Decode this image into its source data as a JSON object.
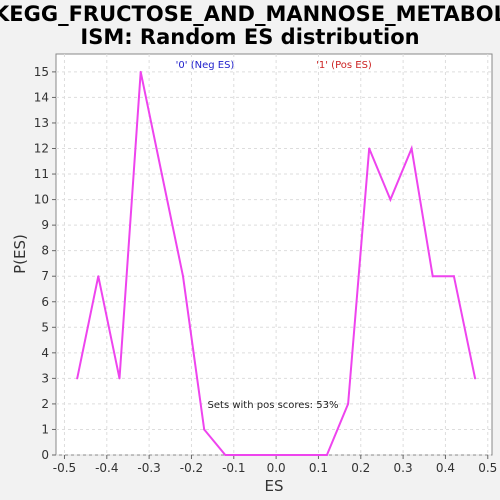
{
  "chart_data": {
    "type": "line",
    "title_lines": [
      "KEGG_FRUCTOSE_AND_MANNOSE_METABOL",
      "ISM: Random ES distribution"
    ],
    "xlabel": "ES",
    "ylabel": "P(ES)",
    "xlim": [
      -0.52,
      0.51
    ],
    "ylim": [
      0,
      15.7
    ],
    "x_ticks": [
      -0.5,
      -0.4,
      -0.3,
      -0.2,
      -0.1,
      0.0,
      0.1,
      0.2,
      0.3,
      0.4,
      0.5
    ],
    "x_tick_labels": [
      "-0.5",
      "-0.4",
      "-0.3",
      "-0.2",
      "-0.1",
      "0.0",
      "0.1",
      "0.2",
      "0.3",
      "0.4",
      "0.5"
    ],
    "y_ticks": [
      0,
      1,
      2,
      3,
      4,
      5,
      6,
      7,
      8,
      9,
      10,
      11,
      12,
      13,
      14,
      15
    ],
    "y_tick_labels": [
      "0",
      "1",
      "2",
      "3",
      "4",
      "5",
      "6",
      "7",
      "8",
      "9",
      "10",
      "11",
      "12",
      "13",
      "14",
      "15"
    ],
    "grid": true,
    "series": [
      {
        "color": "#ee44ee",
        "points": [
          [
            -0.47,
            3
          ],
          [
            -0.42,
            7
          ],
          [
            -0.37,
            3
          ],
          [
            -0.32,
            15
          ],
          [
            -0.27,
            11
          ],
          [
            -0.22,
            7
          ],
          [
            -0.17,
            1
          ],
          [
            -0.12,
            0
          ],
          [
            -0.07,
            0
          ],
          [
            -0.02,
            0
          ],
          [
            0.03,
            0
          ],
          [
            0.08,
            0
          ],
          [
            0.12,
            0
          ],
          [
            0.17,
            2
          ],
          [
            0.22,
            12
          ],
          [
            0.27,
            10
          ],
          [
            0.32,
            12
          ],
          [
            0.37,
            7
          ],
          [
            0.42,
            7
          ],
          [
            0.47,
            3
          ]
        ]
      }
    ],
    "legend": [
      {
        "label": "'0' (Neg ES)",
        "color": "#2222cc"
      },
      {
        "label": "'1' (Pos ES)",
        "color": "#cc2222"
      }
    ],
    "annotation": "Sets with pos scores: 53%"
  }
}
